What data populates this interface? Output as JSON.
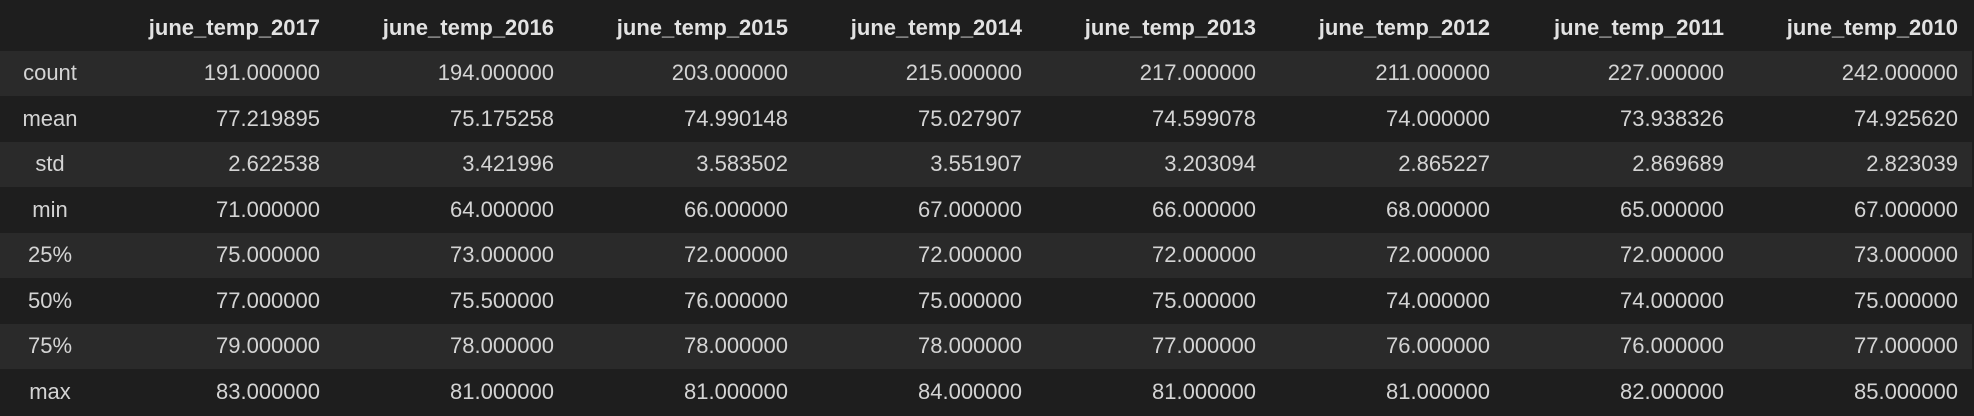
{
  "table": {
    "columns": [
      "june_temp_2017",
      "june_temp_2016",
      "june_temp_2015",
      "june_temp_2014",
      "june_temp_2013",
      "june_temp_2012",
      "june_temp_2011",
      "june_temp_2010"
    ],
    "rows": [
      {
        "label": "count",
        "values": [
          "191.000000",
          "194.000000",
          "203.000000",
          "215.000000",
          "217.000000",
          "211.000000",
          "227.000000",
          "242.000000"
        ]
      },
      {
        "label": "mean",
        "values": [
          "77.219895",
          "75.175258",
          "74.990148",
          "75.027907",
          "74.599078",
          "74.000000",
          "73.938326",
          "74.925620"
        ]
      },
      {
        "label": "std",
        "values": [
          "2.622538",
          "3.421996",
          "3.583502",
          "3.551907",
          "3.203094",
          "2.865227",
          "2.869689",
          "2.823039"
        ]
      },
      {
        "label": "min",
        "values": [
          "71.000000",
          "64.000000",
          "66.000000",
          "67.000000",
          "66.000000",
          "68.000000",
          "65.000000",
          "67.000000"
        ]
      },
      {
        "label": "25%",
        "values": [
          "75.000000",
          "73.000000",
          "72.000000",
          "72.000000",
          "72.000000",
          "72.000000",
          "72.000000",
          "73.000000"
        ]
      },
      {
        "label": "50%",
        "values": [
          "77.000000",
          "75.500000",
          "76.000000",
          "75.000000",
          "75.000000",
          "74.000000",
          "74.000000",
          "75.000000"
        ]
      },
      {
        "label": "75%",
        "values": [
          "79.000000",
          "78.000000",
          "78.000000",
          "78.000000",
          "77.000000",
          "76.000000",
          "76.000000",
          "77.000000"
        ]
      },
      {
        "label": "max",
        "values": [
          "83.000000",
          "81.000000",
          "81.000000",
          "84.000000",
          "81.000000",
          "81.000000",
          "82.000000",
          "85.000000"
        ]
      }
    ]
  },
  "colors": {
    "background": "#1e1e1e",
    "row_stripe": "#2a2a2a",
    "text": "#d4d4d4"
  }
}
